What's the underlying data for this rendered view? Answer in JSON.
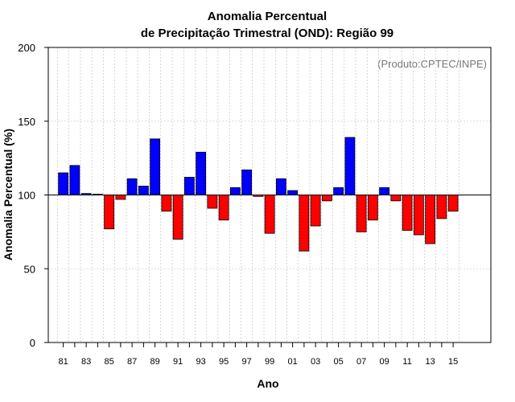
{
  "chart_data": {
    "type": "bar",
    "title": "Anomalia Percentual",
    "subtitle": "de Precipitação Trimestral (OND): Região 99",
    "xlabel": "Ano",
    "ylabel": "Anomalia Percentual (%)",
    "credit": "(Produto:CPTEC/INPE)",
    "ylim": [
      0,
      200
    ],
    "yticks": [
      "0",
      "50",
      "100",
      "150",
      "200"
    ],
    "baseline": 100,
    "grid": true,
    "colors": {
      "above": "#0000ff",
      "below": "#ff0000",
      "edge": "#000000",
      "grid": "#bbbbbb"
    },
    "categories": [
      "81",
      "82",
      "83",
      "84",
      "85",
      "86",
      "87",
      "88",
      "89",
      "90",
      "91",
      "92",
      "93",
      "94",
      "95",
      "96",
      "97",
      "98",
      "99",
      "00",
      "01",
      "02",
      "03",
      "04",
      "05",
      "06",
      "07",
      "08",
      "09",
      "10",
      "11",
      "12",
      "13",
      "14",
      "15"
    ],
    "tick_labels": [
      "81",
      "83",
      "85",
      "87",
      "89",
      "91",
      "93",
      "95",
      "97",
      "99",
      "01",
      "03",
      "05",
      "07",
      "09",
      "11",
      "13",
      "15"
    ],
    "values": [
      115,
      120,
      101,
      100.5,
      77,
      97,
      111,
      106,
      138,
      89,
      70,
      112,
      129,
      91,
      83,
      105,
      117,
      99,
      74,
      111,
      103,
      62,
      79,
      96,
      105,
      139,
      75,
      83,
      105,
      96,
      76,
      73,
      67,
      84,
      89
    ]
  }
}
